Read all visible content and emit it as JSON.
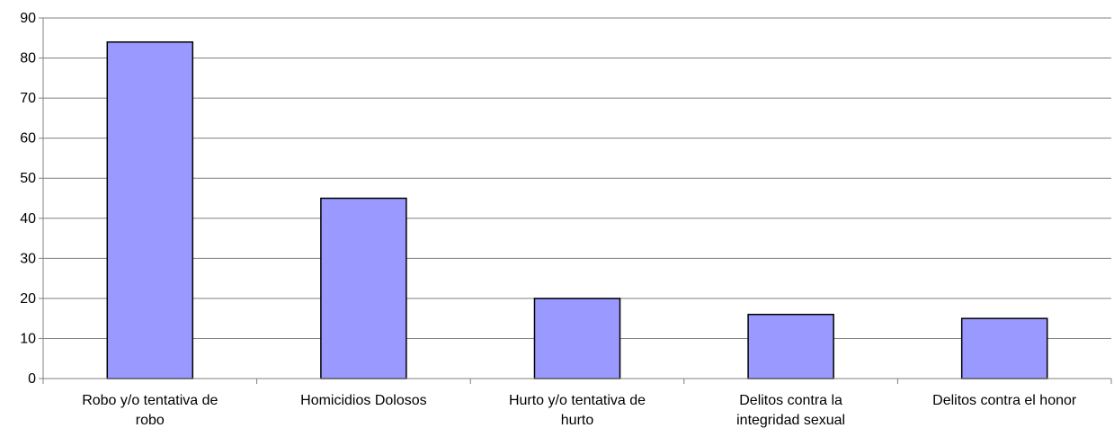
{
  "chart_data": {
    "type": "bar",
    "categories": [
      [
        "Robo y/o tentativa de",
        "robo"
      ],
      [
        "Homicidios Dolosos"
      ],
      [
        "Hurto y/o tentativa de",
        "hurto"
      ],
      [
        "Delitos contra la",
        "integridad sexual"
      ],
      [
        "Delitos contra el honor"
      ]
    ],
    "values": [
      84,
      45,
      20,
      16,
      15
    ],
    "ylim": [
      0,
      90
    ],
    "yticks": [
      0,
      10,
      20,
      30,
      40,
      50,
      60,
      70,
      80,
      90
    ],
    "title": "",
    "xlabel": "",
    "ylabel": "",
    "grid": true,
    "legend": false,
    "colors": {
      "bar_fill": "#9999ff",
      "bar_stroke": "#000000",
      "grid": "#808080",
      "axis": "#808080"
    }
  }
}
